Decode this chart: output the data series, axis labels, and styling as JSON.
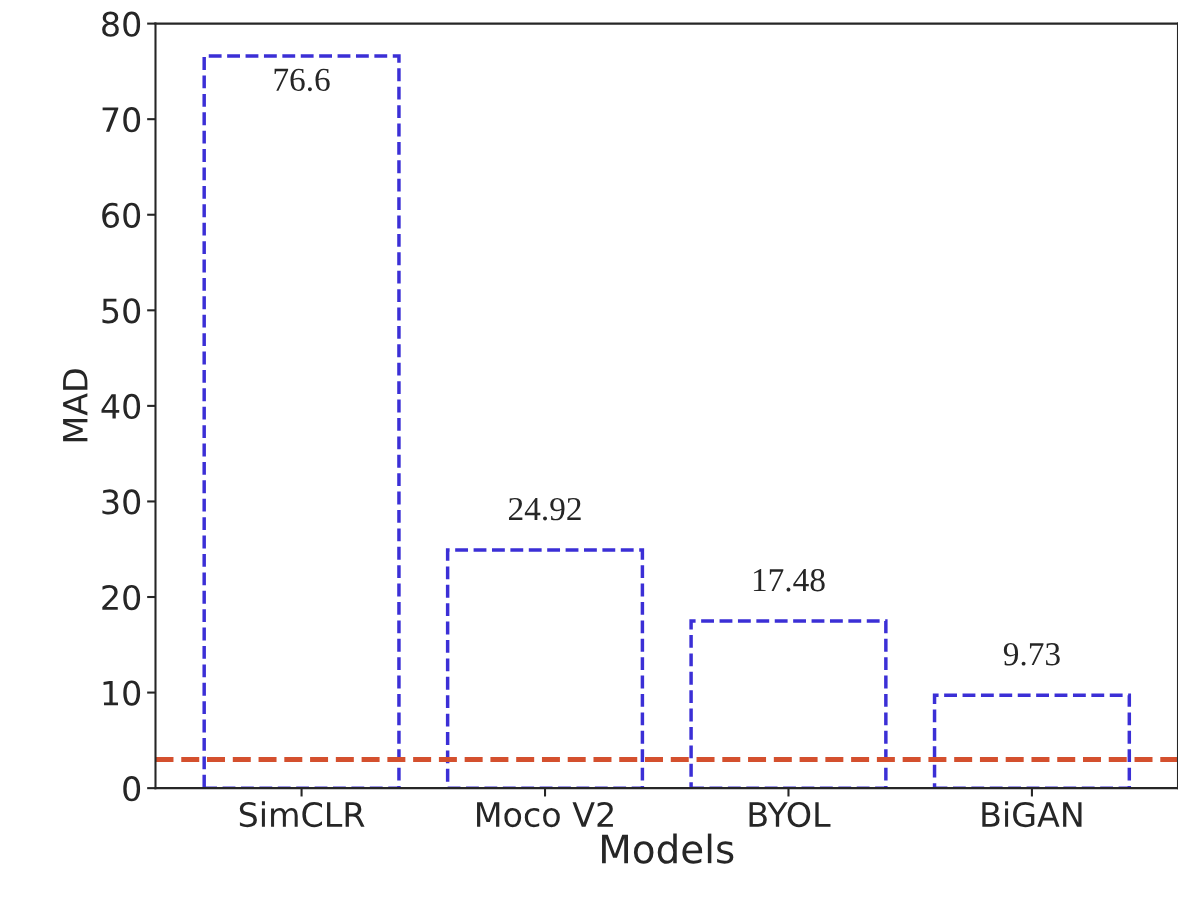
{
  "chart_data": {
    "type": "bar",
    "xlabel": "Models",
    "ylabel": "MAD",
    "categories": [
      "SimCLR",
      "Moco V2",
      "BYOL",
      "BiGAN"
    ],
    "values": [
      76.6,
      24.92,
      17.48,
      9.73
    ],
    "color": "#3b2fd6",
    "line_style": "dashed",
    "ylim": [
      0,
      80
    ],
    "yticks": [
      0,
      10,
      20,
      30,
      40,
      50,
      60,
      70,
      80
    ],
    "data_labels": true,
    "grid": false,
    "legend": false,
    "ref_lines": [
      {
        "axis": "y",
        "value": 3,
        "color": "#d4502e",
        "line_style": "dashed"
      }
    ]
  }
}
